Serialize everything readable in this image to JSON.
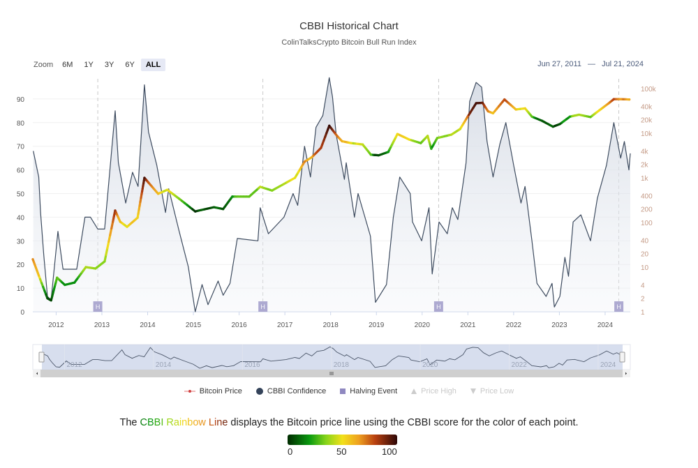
{
  "header": {
    "title": "CBBI Historical Chart",
    "subtitle": "ColinTalksCrypto Bitcoin Bull Run Index"
  },
  "zoom": {
    "label": "Zoom",
    "buttons": [
      "6M",
      "1Y",
      "3Y",
      "6Y",
      "ALL"
    ],
    "active": "ALL"
  },
  "range": {
    "from": "Jun 27, 2011",
    "separator": "—",
    "to": "Jul 21, 2024"
  },
  "legend": [
    {
      "label": "Bitcoin Price",
      "icon": "line-marker-icon",
      "enabled": true
    },
    {
      "label": "CBBI Confidence",
      "icon": "circle-icon",
      "enabled": true
    },
    {
      "label": "Halving Event",
      "icon": "square-icon",
      "enabled": true
    },
    {
      "label": "Price High",
      "icon": "triangle-up-icon",
      "enabled": false
    },
    {
      "label": "Price Low",
      "icon": "triangle-down-icon",
      "enabled": false
    }
  ],
  "caption": {
    "prefix": "The ",
    "highlight": [
      "C",
      "B",
      "B",
      "I",
      " ",
      "R",
      "a",
      "i",
      "n",
      "b",
      "o",
      "w",
      " ",
      "L",
      "i",
      "n",
      "e"
    ],
    "suffix": " displays the Bitcoin price line using the CBBI score for the color of each point."
  },
  "colorbar": {
    "labels": [
      "0",
      "50",
      "100"
    ],
    "stops": [
      {
        "value": 0,
        "color": "#002a00"
      },
      {
        "value": 20,
        "color": "#0a9a10"
      },
      {
        "value": 35,
        "color": "#86d41a"
      },
      {
        "value": 50,
        "color": "#f2e01a"
      },
      {
        "value": 65,
        "color": "#eea020"
      },
      {
        "value": 80,
        "color": "#b84010"
      },
      {
        "value": 100,
        "color": "#2e0808"
      }
    ]
  },
  "colors": {
    "cbbi_line": "#3c4a5e",
    "cbbi_fill": "#dfe3ea",
    "halving_marker": "#8f88c0",
    "right_axis_labels": "#c49a86",
    "navigator_fill": "#c9d3e8"
  },
  "chart_data": {
    "type": "line",
    "title": "CBBI Historical Chart",
    "subtitle": "ColinTalksCrypto Bitcoin Bull Run Index",
    "x_unit": "year",
    "xlim": [
      2011.49,
      2024.55
    ],
    "x_ticks": [
      "2012",
      "2013",
      "2014",
      "2015",
      "2016",
      "2017",
      "2018",
      "2019",
      "2020",
      "2021",
      "2022",
      "2023",
      "2024"
    ],
    "grid": true,
    "y_left": {
      "ylim": [
        0,
        100
      ],
      "ticks": [
        "0",
        "10",
        "20",
        "30",
        "40",
        "50",
        "60",
        "70",
        "80",
        "90"
      ],
      "scale": "linear"
    },
    "y_right": {
      "ylim": [
        1,
        100000
      ],
      "ticks": [
        "1",
        "2",
        "4",
        "10",
        "20",
        "40",
        "100",
        "200",
        "400",
        "1k",
        "2k",
        "4k",
        "10k",
        "20k",
        "40k",
        "100k"
      ],
      "tick_values": [
        1,
        2,
        4,
        10,
        20,
        40,
        100,
        200,
        400,
        1000,
        2000,
        4000,
        10000,
        20000,
        40000,
        100000
      ],
      "scale": "log"
    },
    "series": [
      {
        "name": "CBBI Confidence",
        "axis": "left",
        "x": [
          2011.5,
          2011.62,
          2011.66,
          2011.73,
          2011.81,
          2011.89,
          2012.04,
          2012.15,
          2012.45,
          2012.63,
          2012.75,
          2012.91,
          2013.06,
          2013.29,
          2013.36,
          2013.52,
          2013.67,
          2013.79,
          2013.93,
          2014.02,
          2014.2,
          2014.39,
          2014.46,
          2014.69,
          2014.89,
          2015.04,
          2015.19,
          2015.32,
          2015.54,
          2015.65,
          2015.8,
          2015.96,
          2016.41,
          2016.46,
          2016.64,
          2016.98,
          2017.18,
          2017.28,
          2017.43,
          2017.56,
          2017.68,
          2017.83,
          2017.97,
          2018.04,
          2018.12,
          2018.3,
          2018.34,
          2018.52,
          2018.6,
          2018.87,
          2018.98,
          2019.22,
          2019.37,
          2019.51,
          2019.74,
          2019.79,
          2019.99,
          2020.15,
          2020.22,
          2020.37,
          2020.55,
          2020.66,
          2020.78,
          2020.96,
          2021.04,
          2021.18,
          2021.3,
          2021.42,
          2021.55,
          2021.7,
          2021.83,
          2022.0,
          2022.16,
          2022.25,
          2022.4,
          2022.51,
          2022.71,
          2022.84,
          2022.89,
          2023.01,
          2023.12,
          2023.2,
          2023.3,
          2023.47,
          2023.68,
          2023.83,
          2024.03,
          2024.19,
          2024.34,
          2024.42,
          2024.52,
          2024.55
        ],
        "y": [
          68,
          57,
          42,
          24,
          6.5,
          5,
          34,
          18,
          18,
          40,
          40,
          35,
          35,
          85,
          63,
          46,
          59,
          53,
          96,
          76,
          62,
          42,
          52,
          34,
          19,
          0,
          11.5,
          3,
          13,
          7,
          12,
          31,
          30,
          44,
          33,
          40,
          50,
          45,
          70,
          57,
          78,
          83,
          99,
          91,
          75,
          56,
          63,
          40,
          50,
          32,
          4,
          11.5,
          40,
          57,
          50,
          38,
          30,
          44,
          16,
          38,
          33,
          44,
          39,
          63,
          89,
          97,
          95,
          72,
          57,
          71,
          80,
          62,
          46,
          53,
          30,
          12,
          6.5,
          12,
          2,
          6.5,
          23,
          15,
          38,
          41,
          30,
          48,
          62,
          80,
          65,
          72,
          60,
          67
        ]
      },
      {
        "name": "Bitcoin Price",
        "axis": "right",
        "color_by": "CBBI Confidence",
        "x": [
          2011.49,
          2011.62,
          2011.81,
          2011.89,
          2012.02,
          2012.19,
          2012.4,
          2012.65,
          2012.86,
          2013.06,
          2013.24,
          2013.29,
          2013.4,
          2013.55,
          2013.78,
          2013.87,
          2013.93,
          2014.02,
          2014.23,
          2014.43,
          2014.69,
          2015.04,
          2015.45,
          2015.65,
          2015.85,
          2016.22,
          2016.46,
          2016.72,
          2017.22,
          2017.43,
          2017.59,
          2017.79,
          2017.97,
          2018.14,
          2018.25,
          2018.45,
          2018.7,
          2018.88,
          2019.05,
          2019.26,
          2019.46,
          2019.72,
          2019.97,
          2020.12,
          2020.2,
          2020.33,
          2020.64,
          2020.83,
          2020.99,
          2021.18,
          2021.32,
          2021.44,
          2021.55,
          2021.8,
          2022.05,
          2022.25,
          2022.4,
          2022.62,
          2022.86,
          2023.01,
          2023.23,
          2023.43,
          2023.68,
          2023.88,
          2024.08,
          2024.19,
          2024.34,
          2024.53
        ],
        "y": [
          15,
          6.5,
          2,
          1.8,
          5.8,
          4,
          4.5,
          10,
          9.3,
          13.4,
          104,
          185,
          104,
          80,
          128,
          437,
          1000,
          780,
          440,
          540,
          340,
          177,
          220,
          200,
          380,
          380,
          630,
          520,
          1000,
          2300,
          2900,
          4700,
          14700,
          8700,
          6600,
          6000,
          5600,
          3300,
          3200,
          3800,
          9600,
          7200,
          6000,
          8700,
          4500,
          7800,
          9300,
          12400,
          23000,
          47000,
          48000,
          31000,
          28000,
          57000,
          34000,
          36000,
          23500,
          19000,
          14000,
          16000,
          23500,
          26000,
          23000,
          33000,
          47000,
          58000,
          58000,
          57000
        ]
      }
    ],
    "halving_events": {
      "label": "H",
      "x": [
        2012.91,
        2016.52,
        2020.36,
        2024.3
      ]
    },
    "navigator": {
      "x_ticks": [
        "2012",
        "2014",
        "2016",
        "2018",
        "2020",
        "2022",
        "2024"
      ]
    },
    "legend_placement": "bottom"
  }
}
